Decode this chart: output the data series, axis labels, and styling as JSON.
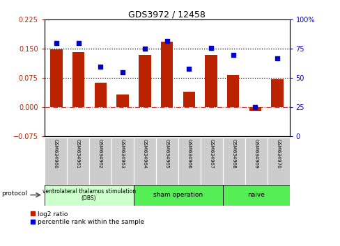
{
  "title": "GDS3972 / 12458",
  "samples": [
    "GSM634960",
    "GSM634961",
    "GSM634962",
    "GSM634963",
    "GSM634964",
    "GSM634965",
    "GSM634966",
    "GSM634967",
    "GSM634968",
    "GSM634969",
    "GSM634970"
  ],
  "log2_ratio": [
    0.148,
    0.141,
    0.063,
    0.033,
    0.135,
    0.168,
    0.04,
    0.135,
    0.083,
    -0.01,
    0.073
  ],
  "percentile_rank": [
    80,
    80,
    60,
    55,
    75,
    82,
    58,
    76,
    70,
    25,
    67
  ],
  "bar_color": "#BB2200",
  "dot_color": "#0000CC",
  "ylim_left": [
    -0.075,
    0.225
  ],
  "ylim_right": [
    0,
    100
  ],
  "yticks_left": [
    -0.075,
    0,
    0.075,
    0.15,
    0.225
  ],
  "yticks_right": [
    0,
    25,
    50,
    75,
    100
  ],
  "hlines": [
    0.075,
    0.15
  ],
  "zero_line_color": "#CC2222",
  "hline_color": "#000000",
  "groups": [
    {
      "label": "ventrolateral thalamus stimulation\n(DBS)",
      "start": 0,
      "end": 4,
      "color": "#CCFFCC"
    },
    {
      "label": "sham operation",
      "start": 4,
      "end": 8,
      "color": "#55EE55"
    },
    {
      "label": "naive",
      "start": 8,
      "end": 11,
      "color": "#55EE55"
    }
  ],
  "protocol_label": "protocol",
  "legend_items": [
    {
      "label": "log2 ratio",
      "color": "#BB2200"
    },
    {
      "label": "percentile rank within the sample",
      "color": "#0000CC"
    }
  ],
  "bg_color": "#FFFFFF",
  "sample_box_color": "#CCCCCC",
  "n_groups": 11
}
